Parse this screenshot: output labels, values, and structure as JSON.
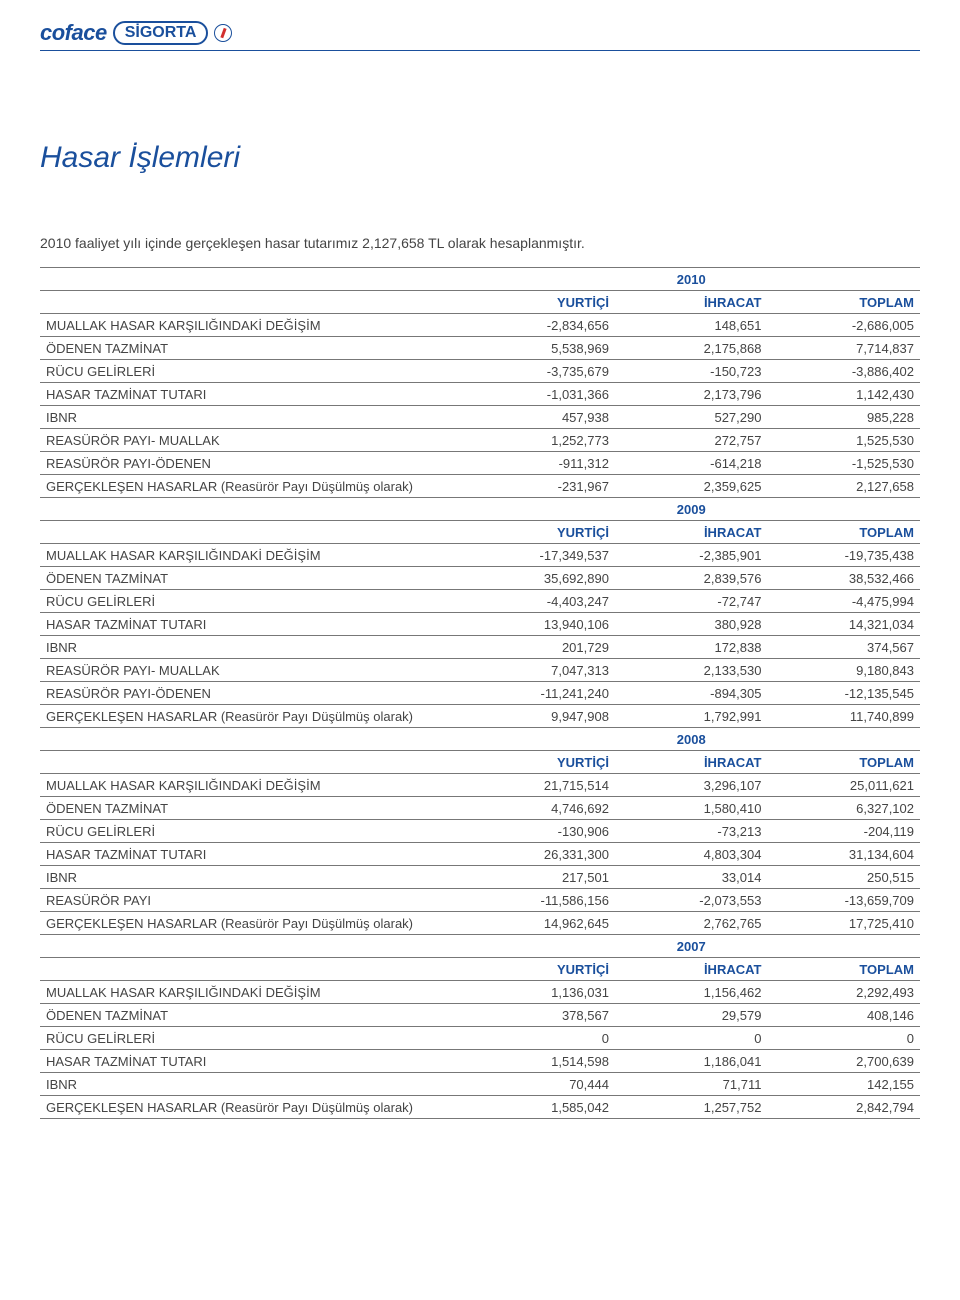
{
  "brand": {
    "coface": "coface",
    "sigorta": "SİGORTA"
  },
  "title": "Hasar İşlemleri",
  "intro": "2010 faaliyet yılı içinde gerçekleşen hasar tutarımız 2,127,658 TL olarak hesaplanmıştır.",
  "table": {
    "columns": [
      "YURTİÇİ",
      "İHRACAT",
      "TOPLAM"
    ],
    "label_col_width_pct": 48,
    "num_col_width_pct": 17.33,
    "fontsize": 13,
    "header_color": "#1a4f9c",
    "text_color": "#444444",
    "border_color": "#777777",
    "sections": [
      {
        "year": "2010",
        "rows": [
          {
            "label": "MUALLAK HASAR KARŞILIĞINDAKİ DEĞİŞİM",
            "v": [
              "-2,834,656",
              "148,651",
              "-2,686,005"
            ]
          },
          {
            "label": "ÖDENEN TAZMİNAT",
            "v": [
              "5,538,969",
              "2,175,868",
              "7,714,837"
            ]
          },
          {
            "label": "RÜCU GELİRLERİ",
            "v": [
              "-3,735,679",
              "-150,723",
              "-3,886,402"
            ]
          },
          {
            "label": "HASAR TAZMİNAT TUTARI",
            "v": [
              "-1,031,366",
              "2,173,796",
              "1,142,430"
            ]
          },
          {
            "label": "IBNR",
            "v": [
              "457,938",
              "527,290",
              "985,228"
            ]
          },
          {
            "label": "REASÜRÖR PAYI- MUALLAK",
            "v": [
              "1,252,773",
              "272,757",
              "1,525,530"
            ]
          },
          {
            "label": "REASÜRÖR PAYI-ÖDENEN",
            "v": [
              "-911,312",
              "-614,218",
              "-1,525,530"
            ]
          },
          {
            "label": "GERÇEKLEŞEN HASARLAR (Reasürör Payı Düşülmüş olarak)",
            "v": [
              "-231,967",
              "2,359,625",
              "2,127,658"
            ]
          }
        ]
      },
      {
        "year": "2009",
        "rows": [
          {
            "label": "MUALLAK HASAR KARŞILIĞINDAKİ DEĞİŞİM",
            "v": [
              "-17,349,537",
              "-2,385,901",
              "-19,735,438"
            ]
          },
          {
            "label": "ÖDENEN TAZMİNAT",
            "v": [
              "35,692,890",
              "2,839,576",
              "38,532,466"
            ]
          },
          {
            "label": "RÜCU GELİRLERİ",
            "v": [
              "-4,403,247",
              "-72,747",
              "-4,475,994"
            ]
          },
          {
            "label": "HASAR TAZMİNAT TUTARI",
            "v": [
              "13,940,106",
              "380,928",
              "14,321,034"
            ]
          },
          {
            "label": "IBNR",
            "v": [
              "201,729",
              "172,838",
              "374,567"
            ]
          },
          {
            "label": "REASÜRÖR PAYI- MUALLAK",
            "v": [
              "7,047,313",
              "2,133,530",
              "9,180,843"
            ]
          },
          {
            "label": "REASÜRÖR PAYI-ÖDENEN",
            "v": [
              "-11,241,240",
              "-894,305",
              "-12,135,545"
            ]
          },
          {
            "label": "GERÇEKLEŞEN HASARLAR (Reasürör Payı Düşülmüş olarak)",
            "v": [
              "9,947,908",
              "1,792,991",
              "11,740,899"
            ]
          }
        ]
      },
      {
        "year": "2008",
        "rows": [
          {
            "label": "MUALLAK HASAR KARŞILIĞINDAKİ DEĞİŞİM",
            "v": [
              "21,715,514",
              "3,296,107",
              "25,011,621"
            ]
          },
          {
            "label": "ÖDENEN TAZMİNAT",
            "v": [
              "4,746,692",
              "1,580,410",
              "6,327,102"
            ]
          },
          {
            "label": "RÜCU GELİRLERİ",
            "v": [
              "-130,906",
              "-73,213",
              "-204,119"
            ]
          },
          {
            "label": "HASAR TAZMİNAT TUTARI",
            "v": [
              "26,331,300",
              "4,803,304",
              "31,134,604"
            ]
          },
          {
            "label": "IBNR",
            "v": [
              "217,501",
              "33,014",
              "250,515"
            ]
          },
          {
            "label": "REASÜRÖR PAYI",
            "v": [
              "-11,586,156",
              "-2,073,553",
              "-13,659,709"
            ]
          },
          {
            "label": "GERÇEKLEŞEN HASARLAR (Reasürör Payı Düşülmüş olarak)",
            "v": [
              "14,962,645",
              "2,762,765",
              "17,725,410"
            ]
          }
        ]
      },
      {
        "year": "2007",
        "rows": [
          {
            "label": "MUALLAK HASAR KARŞILIĞINDAKİ DEĞİŞİM",
            "v": [
              "1,136,031",
              "1,156,462",
              "2,292,493"
            ]
          },
          {
            "label": "ÖDENEN TAZMİNAT",
            "v": [
              "378,567",
              "29,579",
              "408,146"
            ]
          },
          {
            "label": "RÜCU GELİRLERİ",
            "v": [
              "0",
              "0",
              "0"
            ]
          },
          {
            "label": "HASAR TAZMİNAT TUTARI",
            "v": [
              "1,514,598",
              "1,186,041",
              "2,700,639"
            ]
          },
          {
            "label": "IBNR",
            "v": [
              "70,444",
              "71,711",
              "142,155"
            ]
          },
          {
            "label": "GERÇEKLEŞEN HASARLAR (Reasürör Payı Düşülmüş olarak)",
            "v": [
              "1,585,042",
              "1,257,752",
              "2,842,794"
            ]
          }
        ]
      }
    ]
  },
  "colors": {
    "brand_blue": "#1a4f9c",
    "text": "#444444",
    "background": "#ffffff",
    "rule": "#777777",
    "accent_red": "#d22f2f"
  }
}
